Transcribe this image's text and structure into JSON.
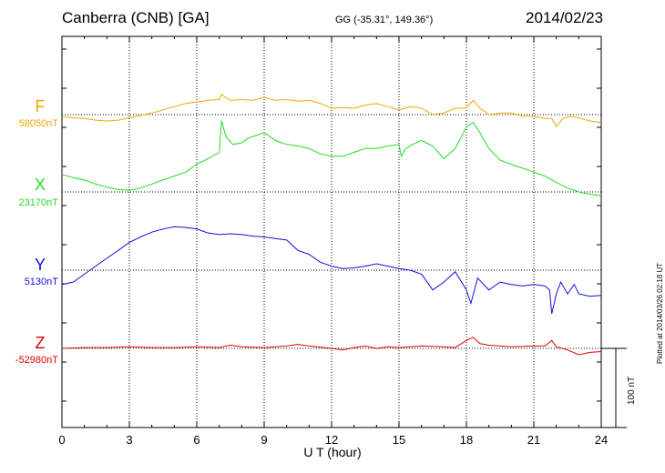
{
  "header": {
    "title": "Canberra (CNB)  [GA]",
    "coords": "GG (-35.31°, 149.36°)",
    "date": "2014/02/23"
  },
  "plotted_note": "Plotted at 2014/03/26 02:18 UT",
  "chart_data": {
    "type": "line",
    "xlabel": "U T (hour)",
    "xlim": [
      0,
      24
    ],
    "xticks": [
      "0",
      "3",
      "6",
      "9",
      "12",
      "15",
      "18",
      "21",
      "24"
    ],
    "grid": true,
    "scale_bar_label": "100 nT",
    "scale_bar_nT": 100,
    "series": [
      {
        "name": "F",
        "baseline": "58050nT",
        "color": "#f0a800",
        "x": [
          0,
          0.5,
          1,
          1.5,
          2,
          2.5,
          3,
          3.5,
          4,
          4.5,
          5,
          5.5,
          6,
          6.5,
          7,
          7.1,
          7.3,
          7.5,
          8,
          8.5,
          9,
          9.5,
          10,
          10.5,
          11,
          11.5,
          12,
          12.5,
          13,
          13.5,
          14,
          14.5,
          15,
          15.5,
          16,
          16.5,
          17,
          17.5,
          18,
          18.3,
          18.6,
          19,
          19.5,
          20,
          20.5,
          21,
          21.5,
          21.8,
          22,
          22.3,
          22.6,
          23,
          23.5,
          24
        ],
        "y": [
          -2,
          -4,
          -5,
          -7,
          -8,
          -7,
          -4,
          -1,
          2,
          6,
          10,
          14,
          16,
          18,
          19,
          26,
          21,
          18,
          19,
          18,
          22,
          18,
          19,
          17,
          18,
          14,
          8,
          9,
          8,
          12,
          14,
          10,
          6,
          10,
          8,
          0,
          2,
          8,
          8,
          18,
          8,
          0,
          2,
          2,
          -2,
          -2,
          -5,
          -5,
          -15,
          -5,
          -2,
          -4,
          -8,
          -10
        ]
      },
      {
        "name": "X",
        "baseline": "23170nT",
        "color": "#22dd22",
        "x": [
          0,
          0.5,
          1,
          1.5,
          2,
          2.5,
          3,
          3.5,
          4,
          4.5,
          5,
          5.5,
          6,
          6.5,
          7,
          7.1,
          7.3,
          7.6,
          8,
          8.3,
          8.7,
          9,
          9.5,
          10,
          10.5,
          11,
          11.5,
          12,
          12.5,
          13,
          13.5,
          14,
          14.5,
          15,
          15.1,
          15.3,
          15.6,
          16,
          16.5,
          17,
          17.5,
          18,
          18.3,
          18.6,
          19,
          19.5,
          20,
          20.5,
          21,
          21.5,
          22,
          22.5,
          23,
          23.5,
          24
        ],
        "y": [
          22,
          18,
          15,
          10,
          6,
          3,
          2,
          5,
          10,
          15,
          20,
          25,
          35,
          42,
          50,
          90,
          70,
          60,
          62,
          68,
          72,
          75,
          65,
          60,
          58,
          55,
          48,
          45,
          45,
          50,
          55,
          55,
          58,
          60,
          45,
          55,
          60,
          65,
          58,
          42,
          55,
          82,
          88,
          75,
          55,
          40,
          35,
          30,
          25,
          20,
          12,
          5,
          0,
          -3,
          -5
        ]
      },
      {
        "name": "Y",
        "baseline": "5130nT",
        "color": "#1010dd",
        "x": [
          0,
          0.5,
          1,
          1.5,
          2,
          2.5,
          3,
          3.5,
          4,
          4.5,
          5,
          5.5,
          6,
          6.5,
          7,
          7.5,
          8,
          8.5,
          9,
          9.5,
          10,
          10.5,
          11,
          11.5,
          12,
          12.5,
          13,
          13.5,
          14,
          14.5,
          15,
          15.5,
          16,
          16.5,
          17,
          17.5,
          18,
          18.2,
          18.5,
          19,
          19.5,
          20,
          20.5,
          21,
          21.5,
          21.7,
          21.8,
          22,
          22.2,
          22.5,
          22.8,
          23,
          23.5,
          24
        ],
        "y": [
          -18,
          -15,
          -5,
          5,
          15,
          25,
          35,
          42,
          48,
          52,
          55,
          54,
          52,
          47,
          45,
          46,
          45,
          43,
          42,
          40,
          38,
          25,
          20,
          10,
          5,
          2,
          3,
          5,
          8,
          5,
          2,
          0,
          -5,
          -25,
          -15,
          -2,
          -25,
          -42,
          -10,
          -25,
          -15,
          -18,
          -20,
          -18,
          -20,
          -25,
          -55,
          -30,
          -15,
          -30,
          -18,
          -30,
          -33,
          -32
        ]
      },
      {
        "name": "Z",
        "baseline": "-52980nT",
        "color": "#e00000",
        "x": [
          0,
          1,
          2,
          3,
          4,
          5,
          6,
          7,
          7.5,
          8,
          9,
          10,
          10.5,
          11,
          12,
          12.5,
          13,
          13.5,
          14,
          14.5,
          15,
          16,
          17,
          17.5,
          18,
          18.3,
          18.6,
          19,
          20,
          21,
          21.5,
          21.8,
          22,
          22.5,
          23,
          23.5,
          24
        ],
        "y": [
          0,
          1,
          1,
          2,
          1,
          1,
          2,
          1,
          4,
          2,
          1,
          3,
          5,
          3,
          0,
          -2,
          1,
          3,
          0,
          2,
          1,
          3,
          2,
          1,
          10,
          14,
          6,
          4,
          2,
          3,
          3,
          10,
          2,
          -2,
          -8,
          -5,
          -4
        ]
      }
    ]
  }
}
